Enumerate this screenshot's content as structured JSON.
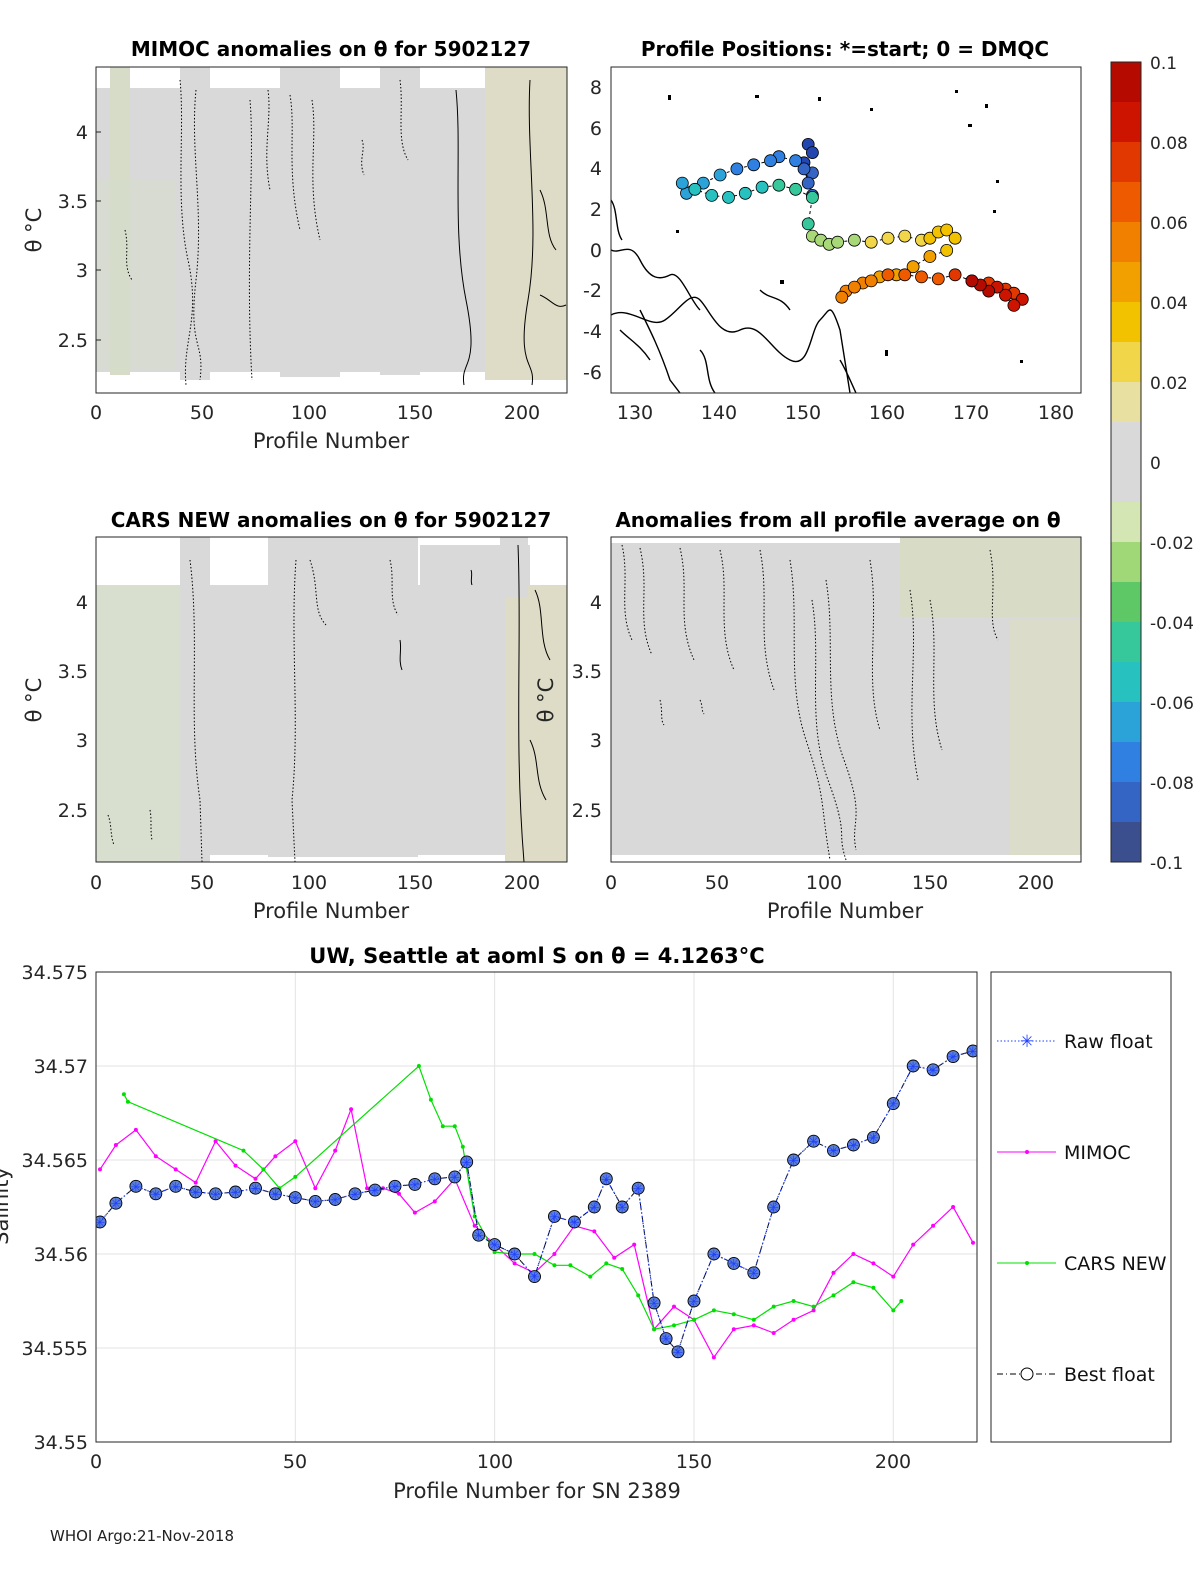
{
  "figure": {
    "footer": "WHOI Argo:21-Nov-2018"
  },
  "colors": {
    "raw_float": "#1f3fff",
    "mimoc": "#ff00ff",
    "cars_new": "#00e000",
    "best_float": "#000000",
    "best_fill": "#5b7fd6",
    "field_gray": "#d9d9d9",
    "field_tan": "#dedcc7",
    "field_green": "#d8e0c8"
  },
  "colorbar": {
    "ticks": [
      "0.1",
      "0.08",
      "0.06",
      "0.04",
      "0.02",
      "0",
      "-0.02",
      "-0.04",
      "-0.06",
      "-0.08",
      "-0.1"
    ],
    "colors": [
      "#3b4f8f",
      "#3464c4",
      "#2f80e0",
      "#2ba3d8",
      "#27c2c0",
      "#36c79a",
      "#5ec866",
      "#a0d878",
      "#d4e6b4",
      "#d9d9d9",
      "#d9d9d9",
      "#e8e0a0",
      "#f0d648",
      "#f2c200",
      "#f2a000",
      "#f28000",
      "#ee5a00",
      "#e03800",
      "#cc1400",
      "#b40a00"
    ]
  },
  "chart_data": [
    {
      "id": "mimoc-anom",
      "type": "heatmap",
      "title": "MIMOC anomalies on θ  for 5902127",
      "xlabel": "Profile Number",
      "ylabel": "θ °C",
      "xlim": [
        0,
        221
      ],
      "ylim": [
        2.15,
        4.45
      ],
      "xticks": [
        "0",
        "50",
        "100",
        "150",
        "200"
      ],
      "yticks": [
        "2.5",
        "3",
        "3.5",
        "4"
      ]
    },
    {
      "id": "positions",
      "type": "scatter",
      "title": "Profile Positions: *=start; 0 = DMQC",
      "xlim": [
        127,
        183
      ],
      "ylim": [
        -7,
        9
      ],
      "xticks": [
        "130",
        "140",
        "150",
        "160",
        "170",
        "180"
      ],
      "yticks": [
        "8",
        "6",
        "4",
        "2",
        "0",
        "-2",
        "-4",
        "-6"
      ],
      "start": [
        148.5,
        5.0
      ],
      "track_lon": [
        150.5,
        151,
        150,
        151,
        150.5,
        151,
        150,
        149,
        147,
        146,
        144,
        142,
        140,
        138,
        136,
        135.5,
        137,
        139,
        141,
        143,
        145,
        147,
        149,
        151,
        150.5,
        151,
        152,
        153,
        154,
        156,
        158,
        160,
        162,
        164,
        165,
        166,
        167,
        168,
        167,
        165,
        163,
        161,
        159,
        157,
        155,
        154.5,
        156,
        158,
        160,
        162,
        164,
        166,
        168,
        170,
        172,
        174,
        175,
        176,
        175,
        174,
        173,
        172,
        171,
        170
      ],
      "track_lat": [
        5.2,
        4.8,
        4.3,
        3.8,
        3.3,
        2.7,
        4.0,
        4.4,
        4.6,
        4.4,
        4.2,
        4.0,
        3.7,
        3.3,
        2.8,
        3.3,
        3.0,
        2.7,
        2.6,
        2.8,
        3.1,
        3.2,
        3.0,
        2.6,
        1.3,
        0.7,
        0.5,
        0.3,
        0.4,
        0.5,
        0.4,
        0.6,
        0.7,
        0.5,
        0.6,
        0.9,
        1.0,
        0.6,
        0.0,
        -0.3,
        -0.8,
        -1.2,
        -1.3,
        -1.6,
        -2.0,
        -2.3,
        -1.8,
        -1.5,
        -1.2,
        -1.2,
        -1.3,
        -1.4,
        -1.2,
        -1.5,
        -1.6,
        -1.9,
        -2.1,
        -2.4,
        -2.7,
        -2.2,
        -1.8,
        -2.0,
        -1.7,
        -1.5
      ]
    },
    {
      "id": "cars-anom",
      "type": "heatmap",
      "title": "CARS NEW anomalies on θ for 5902127",
      "xlabel": "Profile Number",
      "ylabel": "θ °C",
      "xlim": [
        0,
        221
      ],
      "ylim": [
        2.15,
        4.45
      ],
      "xticks": [
        "0",
        "50",
        "100",
        "150",
        "200"
      ],
      "yticks": [
        "2.5",
        "3",
        "3.5",
        "4"
      ]
    },
    {
      "id": "avg-anom",
      "type": "heatmap",
      "title": "Anomalies from all profile average on θ",
      "xlabel": "Profile Number",
      "xlim": [
        0,
        221
      ],
      "ylim": [
        2.15,
        4.45
      ],
      "xticks": [
        "0",
        "50",
        "100",
        "150",
        "200"
      ],
      "yticks": [
        "2.5",
        "3",
        "3.5",
        "4"
      ]
    },
    {
      "id": "salinity",
      "type": "line",
      "title": "UW, Seattle at aoml S on θ = 4.1263°C",
      "xlabel": "Profile Number for SN 2389",
      "ylabel": "Salinity",
      "xlim": [
        0,
        221
      ],
      "ylim": [
        34.55,
        34.575
      ],
      "xticks": [
        "0",
        "50",
        "100",
        "150",
        "200"
      ],
      "yticks": [
        "34.55",
        "34.555",
        "34.56",
        "34.565",
        "34.57",
        "34.575"
      ],
      "legend": [
        "Raw float",
        "MIMOC",
        "CARS NEW",
        "Best float"
      ],
      "series": [
        {
          "name": "Best float",
          "x": [
            1,
            5,
            10,
            15,
            20,
            25,
            30,
            35,
            40,
            45,
            50,
            55,
            60,
            65,
            70,
            75,
            80,
            85,
            90,
            93,
            96,
            100,
            105,
            110,
            115,
            120,
            125,
            128,
            132,
            136,
            140,
            143,
            146,
            150,
            155,
            160,
            165,
            170,
            175,
            180,
            185,
            190,
            195,
            200,
            205,
            210,
            215,
            220
          ],
          "values": [
            34.5617,
            34.5627,
            34.5636,
            34.5632,
            34.5636,
            34.5633,
            34.5632,
            34.5633,
            34.5635,
            34.5632,
            34.563,
            34.5628,
            34.5629,
            34.5632,
            34.5634,
            34.5636,
            34.5637,
            34.564,
            34.5641,
            34.5649,
            34.561,
            34.5605,
            34.56,
            34.5588,
            34.562,
            34.5617,
            34.5625,
            34.564,
            34.5625,
            34.5635,
            34.5574,
            34.5555,
            34.5548,
            34.5575,
            34.56,
            34.5595,
            34.559,
            34.5625,
            34.565,
            34.566,
            34.5655,
            34.5658,
            34.5662,
            34.568,
            34.57,
            34.5698,
            34.5705,
            34.5708
          ]
        },
        {
          "name": "MIMOC",
          "x": [
            1,
            5,
            10,
            15,
            20,
            25,
            30,
            35,
            40,
            45,
            50,
            55,
            60,
            64,
            68,
            72,
            76,
            80,
            85,
            90,
            95,
            100,
            105,
            110,
            115,
            120,
            125,
            130,
            135,
            140,
            145,
            150,
            155,
            160,
            165,
            170,
            175,
            180,
            185,
            190,
            195,
            200,
            205,
            210,
            215,
            220
          ],
          "values": [
            34.5645,
            34.5658,
            34.5666,
            34.5652,
            34.5645,
            34.5638,
            34.566,
            34.5647,
            34.564,
            34.5652,
            34.566,
            34.5635,
            34.5655,
            34.5677,
            34.5635,
            34.5635,
            34.5632,
            34.5622,
            34.5628,
            34.564,
            34.5615,
            34.5605,
            34.5595,
            34.559,
            34.56,
            34.5615,
            34.5612,
            34.5598,
            34.5605,
            34.556,
            34.5572,
            34.5565,
            34.5545,
            34.556,
            34.5562,
            34.5558,
            34.5565,
            34.557,
            34.559,
            34.56,
            34.5595,
            34.5588,
            34.5605,
            34.5615,
            34.5625,
            34.5606
          ]
        },
        {
          "name": "CARS NEW",
          "x": [
            7,
            8,
            37,
            42,
            46,
            50,
            81,
            84,
            87,
            90,
            92,
            95,
            100,
            105,
            110,
            115,
            119,
            124,
            128,
            132,
            136,
            140,
            145,
            150,
            155,
            160,
            165,
            170,
            175,
            180,
            185,
            190,
            195,
            200,
            202
          ],
          "values": [
            34.5685,
            34.5681,
            34.5655,
            34.5645,
            34.5635,
            34.5641,
            34.57,
            34.5682,
            34.5668,
            34.5668,
            34.5657,
            34.562,
            34.5601,
            34.56,
            34.56,
            34.5594,
            34.5594,
            34.5588,
            34.5595,
            34.5592,
            34.5578,
            34.556,
            34.5562,
            34.5565,
            34.557,
            34.5568,
            34.5565,
            34.5572,
            34.5575,
            34.5572,
            34.5578,
            34.5585,
            34.5582,
            34.557,
            34.5575
          ]
        },
        {
          "name": "Raw float",
          "x": [
            1,
            5,
            10,
            15,
            20,
            25,
            30,
            35,
            40,
            45,
            50,
            55,
            60,
            65,
            70,
            75,
            80,
            85,
            90,
            93,
            96,
            100,
            105,
            110,
            115,
            120,
            125,
            128,
            132,
            136,
            140,
            143,
            146,
            150,
            155,
            160,
            165,
            170,
            175,
            180,
            185,
            190,
            195,
            200,
            205,
            210,
            215,
            220
          ],
          "values": [
            34.5617,
            34.5627,
            34.5636,
            34.5632,
            34.5636,
            34.5633,
            34.5632,
            34.5633,
            34.5635,
            34.5632,
            34.563,
            34.5628,
            34.5629,
            34.5632,
            34.5634,
            34.5636,
            34.5637,
            34.564,
            34.5641,
            34.5649,
            34.561,
            34.5605,
            34.56,
            34.5588,
            34.562,
            34.5617,
            34.5625,
            34.564,
            34.5625,
            34.5635,
            34.5574,
            34.5555,
            34.5548,
            34.5575,
            34.56,
            34.5595,
            34.559,
            34.5625,
            34.565,
            34.566,
            34.5655,
            34.5658,
            34.5662,
            34.568,
            34.57,
            34.5698,
            34.5705,
            34.5708
          ]
        }
      ]
    }
  ]
}
